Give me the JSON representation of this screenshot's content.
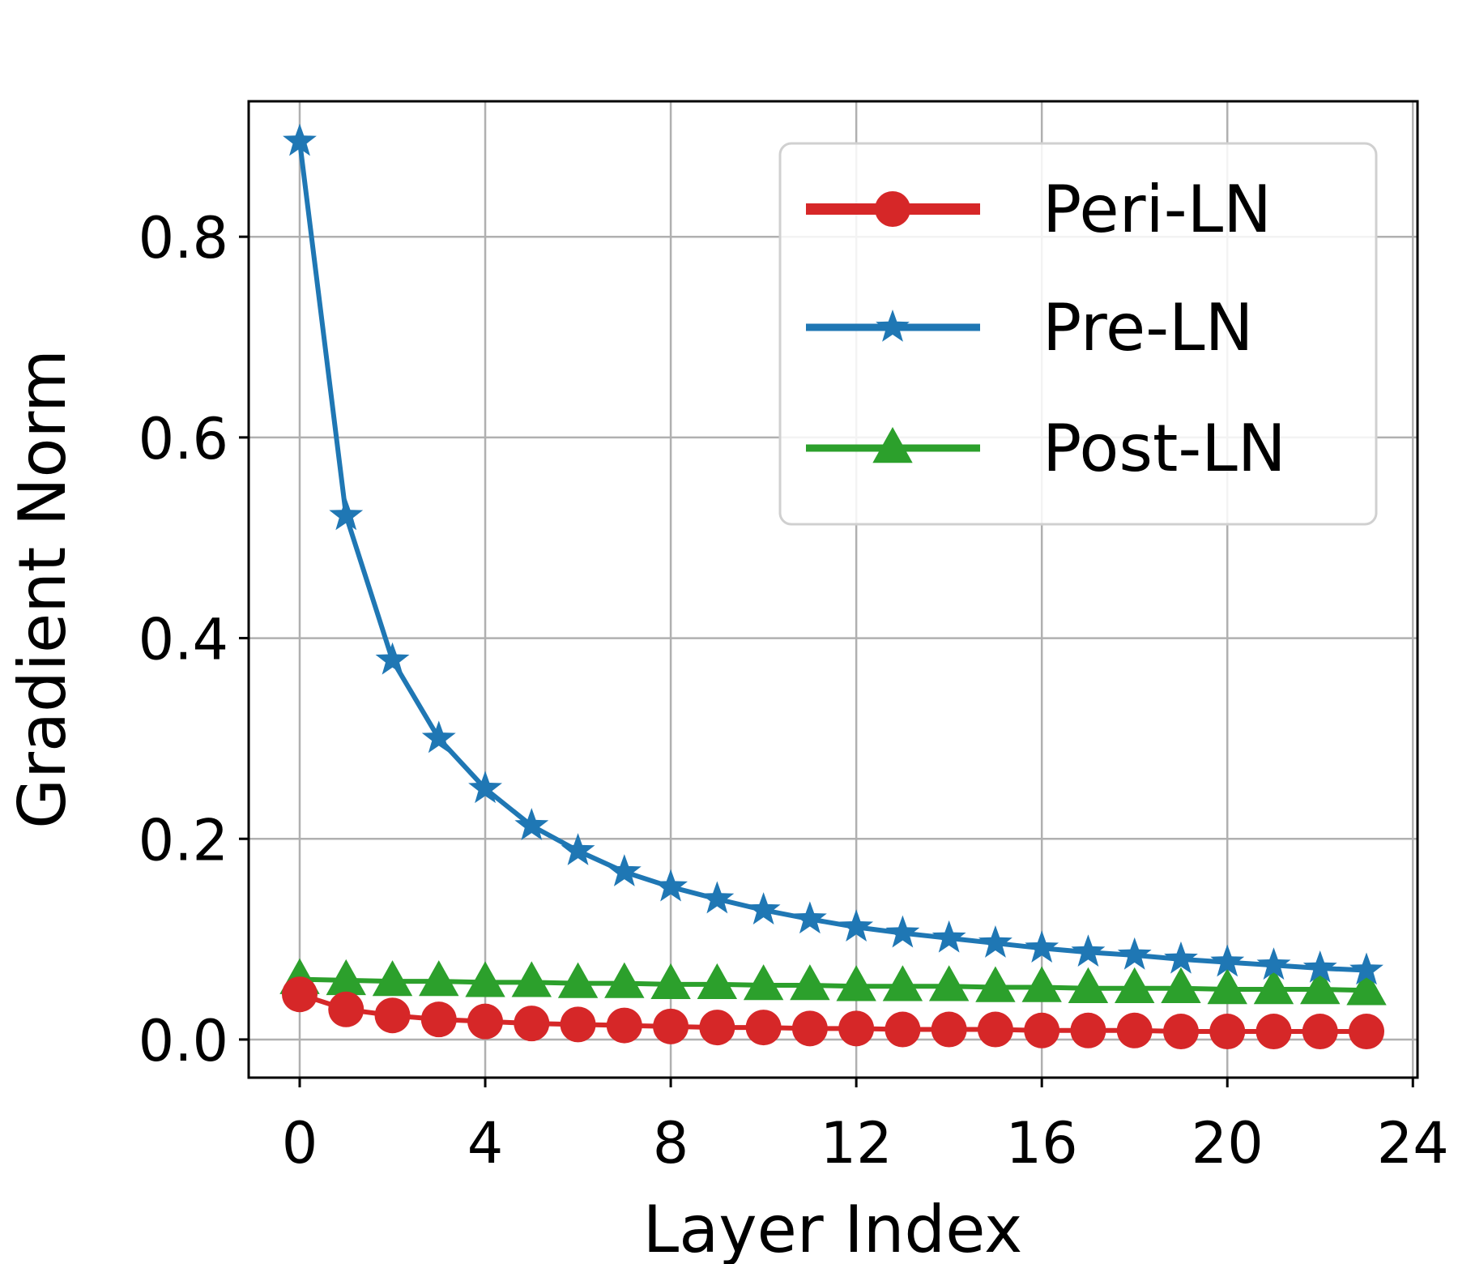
{
  "chart_data": {
    "type": "line",
    "title": "",
    "xlabel": "Layer Index",
    "ylabel": "Gradient Norm",
    "xlim": [
      -1.1,
      24.1
    ],
    "ylim": [
      -0.038,
      0.935
    ],
    "xticks": [
      0,
      4,
      8,
      12,
      16,
      20,
      24
    ],
    "yticks": [
      0.0,
      0.2,
      0.4,
      0.6,
      0.8
    ],
    "ytick_labels": [
      "0.0",
      "0.2",
      "0.4",
      "0.6",
      "0.8"
    ],
    "grid": true,
    "legend_position": "top-right",
    "x": [
      0,
      1,
      2,
      3,
      4,
      5,
      6,
      7,
      8,
      9,
      10,
      11,
      12,
      13,
      14,
      15,
      16,
      17,
      18,
      19,
      20,
      21,
      22,
      23
    ],
    "series": [
      {
        "name": "Peri-LN",
        "color": "#d62728",
        "marker": "circle",
        "values": [
          0.045,
          0.03,
          0.024,
          0.02,
          0.018,
          0.016,
          0.015,
          0.014,
          0.013,
          0.012,
          0.012,
          0.011,
          0.011,
          0.01,
          0.01,
          0.01,
          0.009,
          0.009,
          0.009,
          0.008,
          0.008,
          0.008,
          0.008,
          0.008
        ]
      },
      {
        "name": "Pre-LN",
        "color": "#1f77b4",
        "marker": "star",
        "values": [
          0.895,
          0.522,
          0.378,
          0.3,
          0.25,
          0.213,
          0.188,
          0.167,
          0.152,
          0.14,
          0.129,
          0.12,
          0.112,
          0.106,
          0.101,
          0.096,
          0.091,
          0.087,
          0.084,
          0.08,
          0.077,
          0.074,
          0.071,
          0.069
        ]
      },
      {
        "name": "Post-LN",
        "color": "#2ca02c",
        "marker": "triangle",
        "values": [
          0.06,
          0.059,
          0.058,
          0.058,
          0.057,
          0.057,
          0.056,
          0.056,
          0.055,
          0.055,
          0.054,
          0.054,
          0.053,
          0.053,
          0.053,
          0.052,
          0.052,
          0.051,
          0.051,
          0.051,
          0.05,
          0.05,
          0.05,
          0.049
        ]
      }
    ]
  }
}
